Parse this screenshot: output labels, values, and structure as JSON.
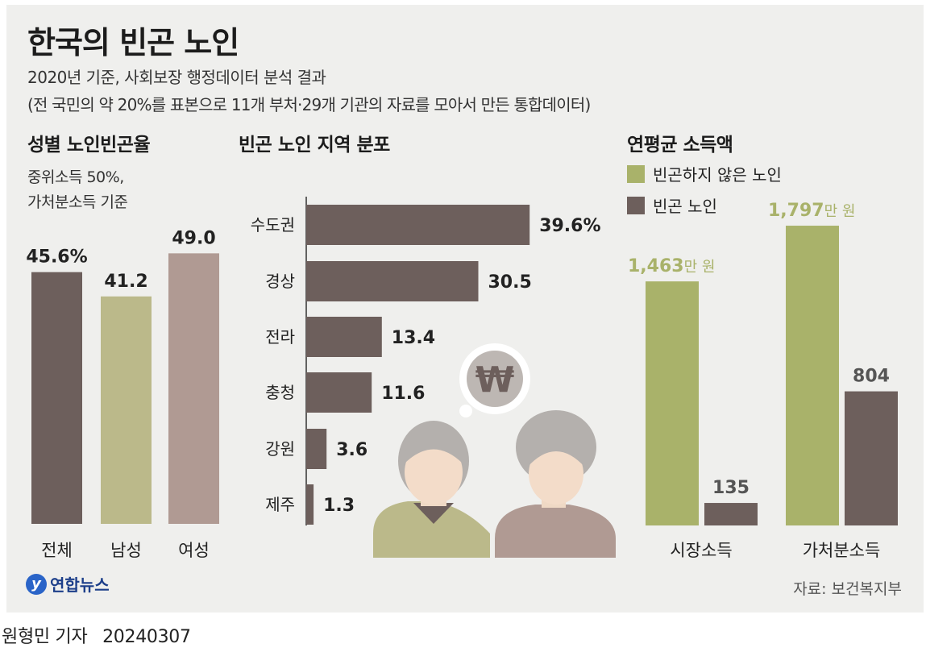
{
  "title": "한국의 빈곤 노인",
  "subtitle1": "2020년 기준, 사회보장 행정데이터 분석 결과",
  "subtitle2": "(전 국민의 약 20%를 표본으로 11개 부처·29개 기관의 자료를 모아서 만든 통합데이터)",
  "source": "자료: 보건복지부",
  "logo_text": "연합뉴스",
  "logo_mark": "y",
  "byline": {
    "author": "원형민 기자",
    "date": "20240307"
  },
  "colors": {
    "dark": "#6d5f5c",
    "olive": "#a9b26a",
    "olive_alt": "#bbb98a",
    "rose": "#b09a93",
    "panel": "#efefed"
  },
  "illustration": {
    "symbol": "₩"
  },
  "chart_data": [
    {
      "type": "bar",
      "title": "성별 노인빈곤율",
      "note_lines": [
        "중위소득 50%,",
        "가처분소득 기준"
      ],
      "categories": [
        "전체",
        "남성",
        "여성"
      ],
      "values": [
        45.6,
        41.2,
        49.0
      ],
      "value_labels": [
        "45.6%",
        "41.2",
        "49.0"
      ],
      "colors": [
        "#6d5f5c",
        "#bbb98a",
        "#b09a93"
      ]
    },
    {
      "type": "bar",
      "orientation": "horizontal",
      "title": "빈곤 노인 지역 분포",
      "categories": [
        "수도권",
        "경상",
        "전라",
        "충청",
        "강원",
        "제주"
      ],
      "values": [
        39.6,
        30.5,
        13.4,
        11.6,
        3.6,
        1.3
      ],
      "value_labels": [
        "39.6%",
        "30.5",
        "13.4",
        "11.6",
        "3.6",
        "1.3"
      ]
    },
    {
      "type": "bar",
      "title": "연평균 소득액",
      "categories": [
        "시장소득",
        "가처분소득"
      ],
      "series": [
        {
          "name": "빈곤하지 않은 노인",
          "values": [
            1463,
            1797
          ],
          "value_labels": [
            "1,463",
            "1,797"
          ],
          "unit": "만 원",
          "color": "#a9b26a"
        },
        {
          "name": "빈곤 노인",
          "values": [
            135,
            804
          ],
          "value_labels": [
            "135",
            "804"
          ],
          "color": "#6d5f5c"
        }
      ]
    }
  ]
}
